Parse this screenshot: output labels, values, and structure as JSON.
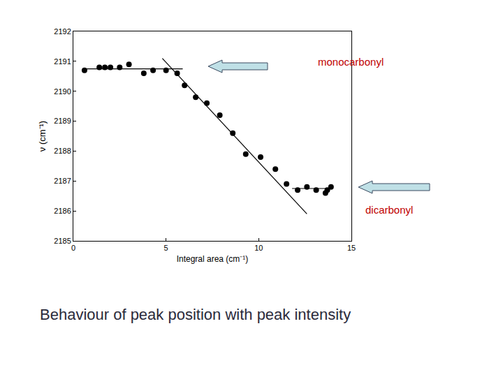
{
  "chart_data": {
    "type": "scatter",
    "x_label": "Integral area (cm⁻¹)",
    "y_label": "ν (cm⁻¹)",
    "caption": "Behaviour of peak position with peak intensity",
    "annotations": [
      {
        "text": "monocarbonyl",
        "color": "#c00000"
      },
      {
        "text": "dicarbonyl",
        "color": "#c00000"
      }
    ],
    "xlim": [
      0,
      15
    ],
    "xticks": [
      0,
      5,
      10,
      15
    ],
    "ylim": [
      2185,
      2192
    ],
    "yticks": [
      2185,
      2186,
      2187,
      2188,
      2189,
      2190,
      2191,
      2192
    ],
    "grid": false,
    "series": [
      {
        "type": "scatter",
        "marker": "circle",
        "color": "#000000",
        "x": [
          0.6,
          1.4,
          1.7,
          2.0,
          2.5,
          3.0,
          3.8,
          4.3,
          5.0,
          5.6,
          6.0,
          6.6,
          7.2,
          7.9,
          8.6,
          9.3,
          10.1,
          10.9,
          11.5,
          12.1,
          12.6,
          13.1,
          13.6,
          13.7,
          13.9
        ],
        "values": [
          2190.7,
          2190.8,
          2190.8,
          2190.8,
          2190.8,
          2190.9,
          2190.6,
          2190.7,
          2190.7,
          2190.6,
          2190.2,
          2189.8,
          2189.6,
          2189.2,
          2188.6,
          2187.9,
          2187.8,
          2187.4,
          2186.9,
          2186.7,
          2186.8,
          2186.7,
          2186.6,
          2186.7,
          2186.8
        ]
      },
      {
        "type": "line",
        "line_style": "solid",
        "color": "#000000",
        "x": [
          0.5,
          5.9
        ],
        "values": [
          2190.75,
          2190.75
        ]
      },
      {
        "type": "line",
        "line_style": "solid",
        "color": "#000000",
        "x": [
          4.8,
          12.6
        ],
        "values": [
          2191.1,
          2185.9
        ]
      },
      {
        "type": "line",
        "line_style": "solid",
        "color": "#000000",
        "x": [
          11.8,
          13.9
        ],
        "values": [
          2186.75,
          2186.75
        ]
      }
    ]
  }
}
